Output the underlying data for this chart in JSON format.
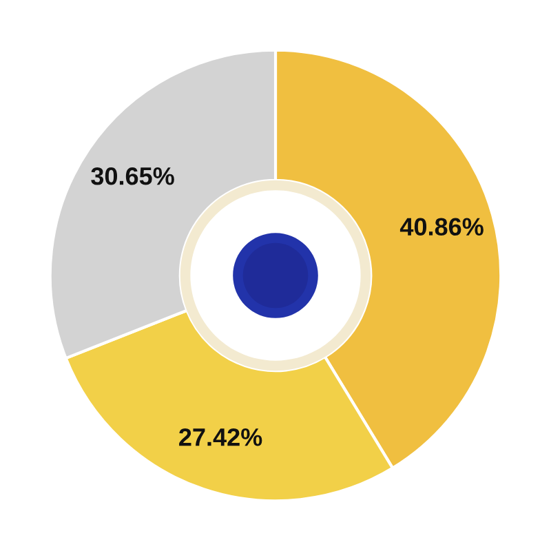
{
  "chart_data": {
    "type": "donut",
    "categories": [
      null,
      null,
      null
    ],
    "values": [
      40.86,
      27.42,
      30.65
    ],
    "value_labels": [
      "40.86%",
      "27.42%",
      "30.65%"
    ],
    "colors": [
      "#f0bf40",
      "#f2d048",
      "#d3d3d3"
    ]
  }
}
